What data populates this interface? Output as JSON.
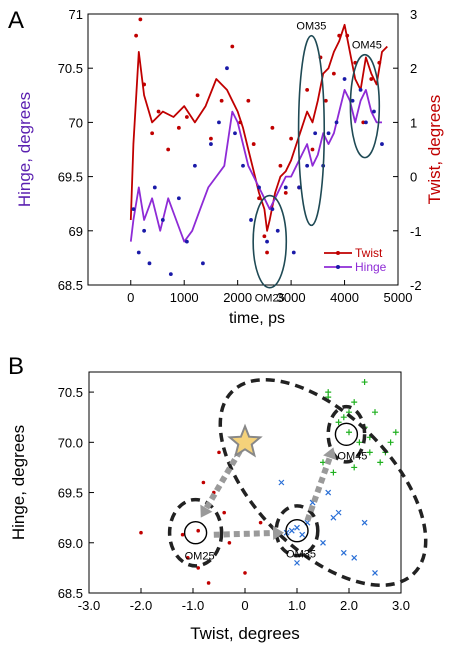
{
  "chart_data": [
    {
      "panel_label": "A",
      "type": "line",
      "xlabel": "time, ps",
      "ylabel_left": "Hinge, degrees",
      "ylabel_right": "Twist, degrees",
      "xlim": [
        -800,
        5000
      ],
      "ylim_left": [
        68.5,
        71
      ],
      "ylim_right": [
        -2,
        3
      ],
      "x_ticks": [
        "0",
        "1000",
        "2000",
        "3000",
        "4000",
        "5000"
      ],
      "x_tick_values": [
        0,
        1000,
        2000,
        3000,
        4000,
        5000
      ],
      "y_left_ticks": [
        "68.5",
        "69",
        "69.5",
        "70",
        "70.5",
        "71"
      ],
      "y_left_tick_values": [
        68.5,
        69,
        69.5,
        70,
        70.5,
        71
      ],
      "y_right_ticks": [
        "-2",
        "-1",
        "0",
        "1",
        "2",
        "3"
      ],
      "y_right_tick_values": [
        -2,
        -1,
        0,
        1,
        2,
        3
      ],
      "legend_position": "bottom-right",
      "series": [
        {
          "name": "Twist",
          "axis": "right",
          "color": "#c00000",
          "line": {
            "x": [
              0,
              50,
              150,
              250,
              400,
              600,
              800,
              1000,
              1200,
              1400,
              1600,
              1800,
              1900,
              2000,
              2100,
              2200,
              2300,
              2400,
              2500,
              2550,
              2600,
              2700,
              2800,
              2900,
              3000,
              3100,
              3200,
              3300,
              3400,
              3500,
              3600,
              3700,
              3800,
              3900,
              4000,
              4100,
              4200,
              4300,
              4400,
              4500,
              4600,
              4700,
              4800
            ],
            "y": [
              -0.8,
              0.6,
              2.3,
              1.5,
              1.0,
              1.2,
              1.1,
              1.3,
              1.0,
              1.3,
              1.8,
              1.6,
              1.4,
              1.2,
              0.9,
              0.5,
              0.1,
              -0.3,
              -0.6,
              -1.0,
              -0.8,
              -0.3,
              0.0,
              0.1,
              0.3,
              0.6,
              0.9,
              1.2,
              1.0,
              1.4,
              1.9,
              2.0,
              2.3,
              2.5,
              2.8,
              2.3,
              1.8,
              1.6,
              2.2,
              1.9,
              1.7,
              2.3,
              2.4
            ]
          },
          "points": {
            "x": [
              100,
              180,
              250,
              400,
              520,
              700,
              900,
              1050,
              1250,
              1500,
              1700,
              1900,
              2050,
              2200,
              2300,
              2400,
              2500,
              2550,
              2650,
              2800,
              2900,
              3000,
              3150,
              3300,
              3400,
              3550,
              3650,
              3800,
              3900,
              4050,
              4200,
              4350,
              4500,
              4650
            ],
            "y": [
              2.6,
              2.9,
              1.7,
              0.8,
              1.2,
              0.5,
              0.9,
              1.1,
              1.5,
              0.7,
              1.4,
              2.4,
              1.0,
              1.4,
              0.6,
              -0.4,
              -1.1,
              -1.4,
              0.9,
              0.2,
              -0.3,
              0.7,
              -0.2,
              1.6,
              0.5,
              2.2,
              1.4,
              1.9,
              2.6,
              2.6,
              2.1,
              1.0,
              1.8,
              2.1
            ]
          }
        },
        {
          "name": "Hinge",
          "axis": "left",
          "color": "#8e2bd6",
          "point_color": "#1a1aa8",
          "line": {
            "x": [
              0,
              50,
              150,
              250,
              400,
              550,
              700,
              850,
              1000,
              1150,
              1300,
              1450,
              1600,
              1750,
              1900,
              2000,
              2100,
              2200,
              2300,
              2400,
              2500,
              2600,
              2700,
              2800,
              2900,
              3000,
              3100,
              3200,
              3300,
              3400,
              3500,
              3600,
              3700,
              3800,
              3900,
              4000,
              4100,
              4200,
              4300,
              4400,
              4500,
              4600,
              4700
            ],
            "y": [
              68.9,
              69.1,
              69.4,
              69.1,
              69.3,
              69.0,
              69.3,
              69.1,
              68.9,
              69.0,
              69.2,
              69.4,
              69.5,
              69.6,
              70.1,
              70.0,
              69.8,
              69.6,
              69.5,
              69.4,
              69.3,
              69.2,
              69.3,
              69.4,
              69.5,
              69.5,
              69.6,
              69.7,
              69.8,
              69.6,
              69.7,
              69.9,
              69.8,
              69.9,
              70.1,
              70.3,
              70.2,
              70.0,
              70.2,
              70.3,
              70.1,
              70.0,
              70.0
            ]
          },
          "points": {
            "x": [
              50,
              150,
              250,
              350,
              450,
              600,
              750,
              900,
              1050,
              1200,
              1350,
              1500,
              1650,
              1800,
              1950,
              2100,
              2250,
              2400,
              2550,
              2650,
              2750,
              2900,
              3050,
              3150,
              3300,
              3450,
              3600,
              3700,
              3850,
              4000,
              4150,
              4300,
              4400,
              4550,
              4700
            ],
            "y": [
              69.2,
              68.8,
              69.0,
              68.7,
              69.4,
              69.1,
              68.6,
              69.3,
              68.9,
              69.6,
              68.7,
              69.8,
              70.0,
              70.5,
              69.9,
              69.6,
              69.1,
              69.4,
              68.9,
              69.2,
              69.0,
              69.4,
              68.8,
              69.4,
              69.6,
              69.9,
              69.6,
              69.9,
              70.0,
              70.4,
              70.2,
              70.3,
              70.0,
              70.1,
              69.8
            ]
          }
        }
      ],
      "annotations": [
        {
          "text": "OM25",
          "ellipse": {
            "cx": 2600,
            "cy": -1.2,
            "rx": 310,
            "ry": 0.85
          }
        },
        {
          "text": "OM35",
          "ellipse": {
            "cx": 3380,
            "cy": 0.85,
            "rx": 240,
            "ry": 1.75
          }
        },
        {
          "text": "OM45",
          "ellipse": {
            "cx": 4380,
            "cy": 1.3,
            "rx": 270,
            "ry": 0.95
          }
        }
      ]
    },
    {
      "panel_label": "B",
      "type": "scatter",
      "xlabel": "Twist, degrees",
      "ylabel": "Hinge, degrees",
      "xlim": [
        -3.0,
        3.0
      ],
      "ylim": [
        68.5,
        70.7
      ],
      "x_ticks": [
        "-3.0",
        "-2.0",
        "-1.0",
        "0",
        "1.0",
        "2.0",
        "3.0"
      ],
      "x_tick_values": [
        -3,
        -2,
        -1,
        0,
        1,
        2,
        3
      ],
      "y_ticks": [
        "68.5",
        "69.0",
        "69.5",
        "70.0",
        "70.5"
      ],
      "y_tick_values": [
        68.5,
        69,
        69.5,
        70,
        70.5
      ],
      "series": [
        {
          "marker": "dot",
          "color": "#c00000",
          "x": [
            -2.0,
            -1.2,
            -0.9,
            -0.8,
            -0.6,
            -0.4,
            -0.5,
            -0.9,
            -1.1,
            -0.3,
            0.0,
            0.3,
            -0.7
          ],
          "y": [
            69.1,
            69.08,
            69.12,
            69.6,
            69.5,
            69.3,
            69.9,
            68.75,
            68.85,
            69.0,
            68.7,
            69.2,
            68.6
          ]
        },
        {
          "marker": "x",
          "color": "#2a6fd6",
          "x": [
            0.8,
            1.0,
            1.1,
            0.9,
            1.2,
            1.7,
            2.3,
            2.5,
            1.5,
            1.9,
            1.3,
            0.7,
            1.8,
            2.1,
            1.0,
            1.6
          ],
          "y": [
            69.1,
            69.15,
            69.08,
            69.12,
            69.2,
            69.25,
            69.2,
            68.7,
            69.0,
            68.9,
            69.4,
            69.6,
            69.3,
            68.85,
            68.8,
            69.5
          ]
        },
        {
          "marker": "plus",
          "color": "#20b020",
          "x": [
            1.6,
            2.1,
            2.3,
            2.5,
            2.8,
            1.8,
            2.0,
            2.4,
            2.6,
            1.7,
            2.2,
            1.5,
            2.9,
            2.0,
            1.9,
            2.7,
            2.3,
            1.6,
            2.1,
            2.4
          ],
          "y": [
            70.5,
            70.4,
            70.6,
            70.3,
            70.0,
            70.2,
            70.1,
            69.9,
            69.8,
            69.7,
            70.0,
            69.8,
            70.1,
            70.3,
            70.25,
            69.9,
            70.15,
            70.45,
            69.75,
            70.05
          ]
        }
      ],
      "star": {
        "x": 0.0,
        "y": 70.0,
        "color": "#f5d27a"
      },
      "clusters": [
        {
          "label": "OM25",
          "center": [
            -0.95,
            69.1
          ],
          "ellipse_r": [
            1.0,
            0.6
          ]
        },
        {
          "label": "OM35",
          "center": [
            1.0,
            69.12
          ],
          "ellipse_r": [
            0.8,
            0.45
          ]
        },
        {
          "label": "OM45",
          "center": [
            1.95,
            70.08
          ],
          "ellipse_r": [
            0.7,
            0.5
          ]
        }
      ],
      "dashed_path_ellipses": [
        {
          "cx": 1.5,
          "cy": 69.6,
          "rx": 1.3,
          "ry": 0.4,
          "angle": -45
        }
      ],
      "arrows": [
        {
          "from": [
            0.0,
            70.0
          ],
          "to": [
            -0.85,
            69.25
          ]
        },
        {
          "from": [
            -0.6,
            69.08
          ],
          "to": [
            0.75,
            69.1
          ]
        },
        {
          "from": [
            1.2,
            69.22
          ],
          "to": [
            1.7,
            69.95
          ]
        }
      ]
    }
  ]
}
